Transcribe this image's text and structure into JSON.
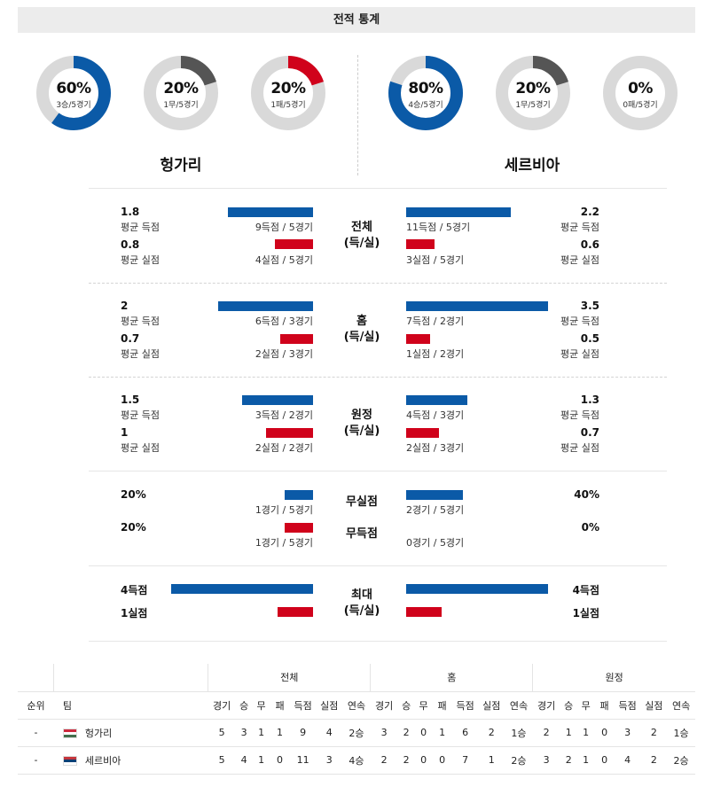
{
  "header": {
    "title": "전적 통계"
  },
  "teams": {
    "home": "헝가리",
    "away": "세르비아"
  },
  "donuts": {
    "home": [
      {
        "pct": "60%",
        "record": "3승/5경기",
        "fraction": 0.6,
        "color": "#0b5aa7"
      },
      {
        "pct": "20%",
        "record": "1무/5경기",
        "fraction": 0.2,
        "color": "#555555"
      },
      {
        "pct": "20%",
        "record": "1패/5경기",
        "fraction": 0.2,
        "color": "#d0021b"
      }
    ],
    "away": [
      {
        "pct": "80%",
        "record": "4승/5경기",
        "fraction": 0.8,
        "color": "#0b5aa7"
      },
      {
        "pct": "20%",
        "record": "1무/5경기",
        "fraction": 0.2,
        "color": "#555555"
      },
      {
        "pct": "0%",
        "record": "0패/5경기",
        "fraction": 0.0,
        "color": "#d0021b"
      }
    ]
  },
  "labels": {
    "avg_scored": "평균 득점",
    "avg_conceded": "평균 실점"
  },
  "sections": {
    "overall": {
      "title1": "전체",
      "title2": "(득/실)",
      "home": {
        "scored": "1.8",
        "scored_detail": "9득점 / 5경기",
        "conceded": "0.8",
        "conceded_detail": "4실점 / 5경기"
      },
      "away": {
        "scored": "2.2",
        "scored_detail": "11득점 / 5경기",
        "conceded": "0.6",
        "conceded_detail": "3실점 / 5경기"
      }
    },
    "home_games": {
      "title1": "홈",
      "title2": "(득/실)",
      "home": {
        "scored": "2",
        "scored_detail": "6득점 / 3경기",
        "conceded": "0.7",
        "conceded_detail": "2실점 / 3경기"
      },
      "away": {
        "scored": "3.5",
        "scored_detail": "7득점 / 2경기",
        "conceded": "0.5",
        "conceded_detail": "1실점 / 2경기"
      }
    },
    "away_games": {
      "title1": "원정",
      "title2": "(득/실)",
      "home": {
        "scored": "1.5",
        "scored_detail": "3득점 / 2경기",
        "conceded": "1",
        "conceded_detail": "2실점 / 2경기"
      },
      "away": {
        "scored": "1.3",
        "scored_detail": "4득점 / 3경기",
        "conceded": "0.7",
        "conceded_detail": "2실점 / 3경기"
      }
    },
    "clean": {
      "clean_sheet": "무실점",
      "no_score": "무득점",
      "home": {
        "clean_pct": "20%",
        "clean_detail": "1경기 / 5경기",
        "noscore_pct": "20%",
        "noscore_detail": "1경기 / 5경기"
      },
      "away": {
        "clean_pct": "40%",
        "clean_detail": "2경기 / 5경기",
        "noscore_pct": "0%",
        "noscore_detail": "0경기 / 5경기"
      }
    },
    "max": {
      "title1": "최대",
      "title2": "(득/실)",
      "home": {
        "scored": "4득점",
        "conceded": "1실점"
      },
      "away": {
        "scored": "4득점",
        "conceded": "1실점"
      }
    }
  },
  "standings": {
    "groups": [
      "전체",
      "홈",
      "원정"
    ],
    "headers": {
      "rank": "순위",
      "team": "팀",
      "cols": [
        "경기",
        "승",
        "무",
        "패",
        "득점",
        "실점",
        "연속"
      ]
    },
    "rows": [
      {
        "rank": "-",
        "team": "헝가리",
        "flag": "hu",
        "overall": [
          "5",
          "3",
          "1",
          "1",
          "9",
          "4",
          "2승"
        ],
        "home": [
          "3",
          "2",
          "0",
          "1",
          "6",
          "2",
          "1승"
        ],
        "away": [
          "2",
          "1",
          "1",
          "0",
          "3",
          "2",
          "1승"
        ]
      },
      {
        "rank": "-",
        "team": "세르비아",
        "flag": "rs",
        "overall": [
          "5",
          "4",
          "1",
          "0",
          "11",
          "3",
          "4승"
        ],
        "home": [
          "2",
          "2",
          "0",
          "0",
          "7",
          "1",
          "2승"
        ],
        "away": [
          "3",
          "2",
          "1",
          "0",
          "4",
          "2",
          "2승"
        ]
      }
    ]
  }
}
